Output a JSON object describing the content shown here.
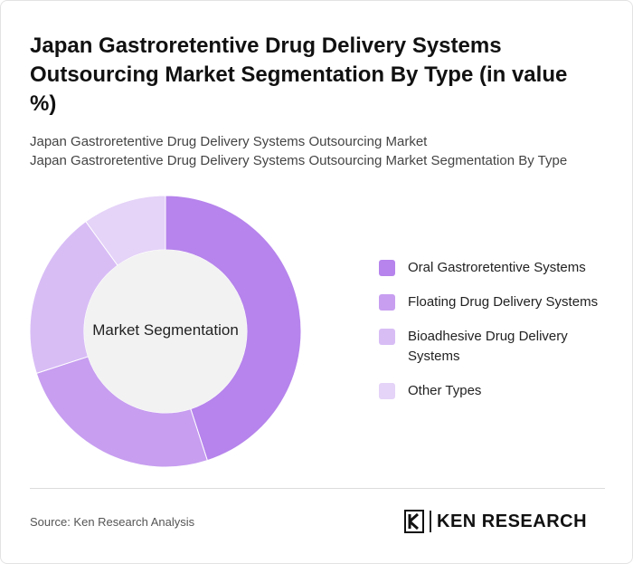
{
  "header": {
    "title": "Japan Gastroretentive Drug Delivery Systems Outsourcing Market Segmentation By Type (in value %)",
    "subtitle_line1": "Japan Gastroretentive Drug Delivery Systems Outsourcing Market",
    "subtitle_line2": "Japan Gastroretentive Drug Delivery Systems Outsourcing Market Segmentation By Type"
  },
  "chart_data": {
    "type": "pie",
    "variant": "donut",
    "center_label": "Market Segmentation",
    "legend_position": "right",
    "slices": [
      {
        "label": "Oral Gastroretentive Systems",
        "value": 45,
        "color": "#b684ec"
      },
      {
        "label": "Floating Drug Delivery Systems",
        "value": 25,
        "color": "#c79ef0"
      },
      {
        "label": "Bioadhesive Drug Delivery Systems",
        "value": 20,
        "color": "#d8bdf5"
      },
      {
        "label": "Other Types",
        "value": 10,
        "color": "#e5d3f8"
      }
    ],
    "hole_color": "#f2f2f2"
  },
  "footer": {
    "source": "Source: Ken Research Analysis",
    "logo_text": "KEN RESEARCH"
  }
}
